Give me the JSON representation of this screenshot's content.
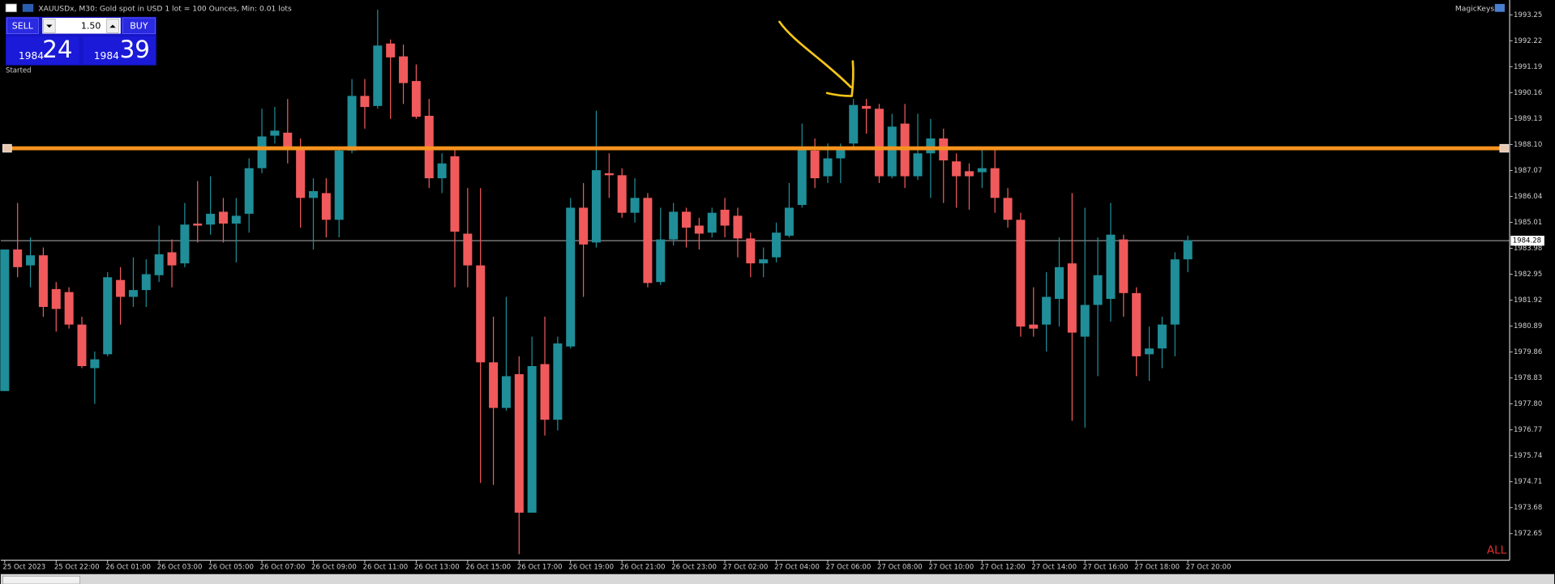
{
  "header": {
    "title": "XAUUSDx, M30:  Gold spot in USD 1 lot = 100 Ounces, Min: 0.01 lots",
    "plugin": "MagicKeys"
  },
  "trade_panel": {
    "sell": "SELL",
    "buy": "BUY",
    "lot": "1.50",
    "sell_big": "1984",
    "sell_pips": "24",
    "buy_big": "1984",
    "buy_pips": "39",
    "status": "Started"
  },
  "corner_label": "ALL",
  "chart_data": {
    "type": "candlestick",
    "up_color": "#1f8e98",
    "down_color": "#f05a5c",
    "hline": 1987.95,
    "hline_color": "#f7931e",
    "current_price": 1984.28,
    "ylim": [
      1971.63,
      1993.76
    ],
    "yticks": [
      1993.25,
      1992.22,
      1991.19,
      1990.16,
      1989.13,
      {
        "value": 1988.1,
        "label": "1988.10"
      },
      1987.07,
      1986.04,
      1985.01,
      1983.98,
      1982.95,
      1981.92,
      1980.89,
      1979.86,
      1978.83,
      {
        "value": 1977.8,
        "label": "1977.80"
      },
      1976.77,
      1975.74,
      1974.71,
      1973.68,
      1972.65
    ],
    "categories": [
      "25 Oct 2023",
      null,
      null,
      null,
      "25 Oct 22:00",
      null,
      null,
      null,
      "26 Oct 01:00",
      null,
      null,
      null,
      "26 Oct 03:00",
      null,
      null,
      null,
      "26 Oct 05:00",
      null,
      null,
      null,
      "26 Oct 07:00",
      null,
      null,
      null,
      "26 Oct 09:00",
      null,
      null,
      null,
      "26 Oct 11:00",
      null,
      null,
      null,
      "26 Oct 13:00",
      null,
      null,
      null,
      "26 Oct 15:00",
      null,
      null,
      null,
      "26 Oct 17:00",
      null,
      null,
      null,
      "26 Oct 19:00",
      null,
      null,
      null,
      "26 Oct 21:00",
      null,
      null,
      null,
      "26 Oct 23:00",
      null,
      null,
      null,
      "27 Oct 02:00",
      null,
      null,
      null,
      "27 Oct 04:00",
      null,
      null,
      null,
      "27 Oct 06:00",
      null,
      null,
      null,
      "27 Oct 08:00",
      null,
      null,
      null,
      "27 Oct 10:00",
      null,
      null,
      null,
      "27 Oct 12:00",
      null,
      null,
      null,
      "27 Oct 14:00",
      null,
      null,
      null,
      "27 Oct 16:00",
      null,
      null,
      null,
      "27 Oct 18:00",
      null,
      null,
      null,
      "27 Oct 20:00"
    ],
    "ohlc": [
      [
        1978.31,
        1983.93,
        1978.31,
        1983.93
      ],
      [
        1983.93,
        1985.78,
        1982.83,
        1983.23
      ],
      [
        1983.3,
        1984.41,
        1982.43,
        1983.7
      ],
      [
        1983.7,
        1984.01,
        1981.26,
        1981.65
      ],
      [
        1982.36,
        1982.64,
        1980.67,
        1981.57
      ],
      [
        1982.24,
        1982.43,
        1980.79,
        1980.95
      ],
      [
        1980.95,
        1981.26,
        1979.22,
        1979.3
      ],
      [
        1979.22,
        1979.88,
        1977.8,
        1979.57
      ],
      [
        1979.77,
        1983.03,
        1979.69,
        1982.83
      ],
      [
        1982.72,
        1983.23,
        1980.95,
        1982.05
      ],
      [
        1982.05,
        1983.62,
        1981.65,
        1982.32
      ],
      [
        1982.32,
        1983.54,
        1981.65,
        1982.95
      ],
      [
        1982.91,
        1984.88,
        1982.64,
        1983.74
      ],
      [
        1983.82,
        1984.33,
        1982.43,
        1983.3
      ],
      [
        1983.38,
        1985.78,
        1983.23,
        1984.92
      ],
      [
        1984.96,
        1986.65,
        1984.21,
        1984.88
      ],
      [
        1984.92,
        1986.84,
        1984.52,
        1985.35
      ],
      [
        1985.43,
        1985.98,
        1984.21,
        1984.96
      ],
      [
        1984.96,
        1985.98,
        1983.42,
        1985.27
      ],
      [
        1985.35,
        1987.55,
        1984.6,
        1987.16
      ],
      [
        1987.16,
        1989.52,
        1986.96,
        1988.42
      ],
      [
        1988.45,
        1989.59,
        1988.14,
        1988.65
      ],
      [
        1988.57,
        1989.91,
        1987.35,
        1987.94
      ],
      [
        1987.94,
        1988.34,
        1984.8,
        1985.98
      ],
      [
        1985.98,
        1986.76,
        1983.93,
        1986.25
      ],
      [
        1986.17,
        1986.76,
        1984.41,
        1985.11
      ],
      [
        1985.11,
        1987.94,
        1984.41,
        1987.86
      ],
      [
        1987.86,
        1990.7,
        1987.75,
        1990.03
      ],
      [
        1990.03,
        1990.7,
        1988.73,
        1989.59
      ],
      [
        1989.63,
        1993.45,
        1989.52,
        1992.03
      ],
      [
        1992.11,
        1992.27,
        1989.12,
        1991.56
      ],
      [
        1991.6,
        1992.07,
        1989.71,
        1990.54
      ],
      [
        1990.62,
        1991.28,
        1989.12,
        1989.2
      ],
      [
        1989.24,
        1989.91,
        1986.37,
        1986.76
      ],
      [
        1986.76,
        1987.75,
        1986.17,
        1987.35
      ],
      [
        1987.63,
        1987.94,
        1982.43,
        1984.64
      ],
      [
        1984.56,
        1986.37,
        1982.43,
        1983.3
      ],
      [
        1983.3,
        1986.37,
        1974.66,
        1979.45
      ],
      [
        1979.45,
        1981.26,
        1974.58,
        1977.64
      ],
      [
        1977.64,
        1982.05,
        1977.53,
        1978.9
      ],
      [
        1978.98,
        1979.69,
        1971.83,
        1973.48
      ],
      [
        1973.48,
        1980.47,
        1973.48,
        1979.3
      ],
      [
        1979.38,
        1981.26,
        1976.54,
        1977.17
      ],
      [
        1977.17,
        1980.47,
        1976.74,
        1980.2
      ],
      [
        1980.08,
        1985.98,
        1980.0,
        1985.59
      ],
      [
        1985.59,
        1986.57,
        1982.05,
        1984.13
      ],
      [
        1984.21,
        1989.44,
        1984.01,
        1987.08
      ],
      [
        1986.96,
        1987.75,
        1985.98,
        1986.88
      ],
      [
        1986.88,
        1987.16,
        1985.19,
        1985.39
      ],
      [
        1985.39,
        1986.76,
        1985.0,
        1985.98
      ],
      [
        1985.98,
        1986.17,
        1982.43,
        1982.6
      ],
      [
        1982.64,
        1985.59,
        1982.52,
        1984.33
      ],
      [
        1984.33,
        1985.78,
        1984.09,
        1985.43
      ],
      [
        1985.43,
        1985.59,
        1984.01,
        1984.8
      ],
      [
        1984.88,
        1985.19,
        1983.93,
        1984.56
      ],
      [
        1984.6,
        1985.59,
        1984.41,
        1985.39
      ],
      [
        1985.51,
        1985.98,
        1984.41,
        1984.88
      ],
      [
        1985.27,
        1985.59,
        1983.62,
        1984.37
      ],
      [
        1984.37,
        1984.6,
        1982.83,
        1983.38
      ],
      [
        1983.38,
        1984.01,
        1982.83,
        1983.54
      ],
      [
        1983.62,
        1985.0,
        1983.42,
        1984.6
      ],
      [
        1984.48,
        1986.57,
        1984.41,
        1985.59
      ],
      [
        1985.7,
        1988.93,
        1985.59,
        1987.94
      ],
      [
        1987.86,
        1988.34,
        1986.37,
        1986.76
      ],
      [
        1986.84,
        1988.14,
        1986.57,
        1987.55
      ],
      [
        1987.55,
        1988.14,
        1986.57,
        1987.94
      ],
      [
        1988.14,
        1989.91,
        1987.94,
        1989.67
      ],
      [
        1989.63,
        1989.91,
        1988.53,
        1989.52
      ],
      [
        1989.52,
        1989.71,
        1986.57,
        1986.84
      ],
      [
        1986.84,
        1989.32,
        1986.76,
        1988.81
      ],
      [
        1988.93,
        1989.71,
        1986.37,
        1986.84
      ],
      [
        1986.84,
        1989.32,
        1986.69,
        1987.75
      ],
      [
        1987.75,
        1989.12,
        1985.98,
        1988.34
      ],
      [
        1988.34,
        1988.73,
        1985.78,
        1987.47
      ],
      [
        1987.43,
        1987.75,
        1985.59,
        1986.84
      ],
      [
        1987.04,
        1987.35,
        1985.51,
        1986.84
      ],
      [
        1987.0,
        1987.94,
        1986.37,
        1987.16
      ],
      [
        1987.16,
        1987.94,
        1985.39,
        1985.98
      ],
      [
        1985.98,
        1986.37,
        1984.8,
        1985.11
      ],
      [
        1985.11,
        1985.39,
        1980.47,
        1980.87
      ],
      [
        1980.95,
        1982.43,
        1980.47,
        1980.79
      ],
      [
        1980.95,
        1983.03,
        1979.88,
        1982.05
      ],
      [
        1981.97,
        1984.41,
        1980.87,
        1983.23
      ],
      [
        1983.38,
        1986.17,
        1977.13,
        1980.63
      ],
      [
        1980.47,
        1985.59,
        1976.86,
        1981.73
      ],
      [
        1981.73,
        1984.41,
        1978.9,
        1982.91
      ],
      [
        1981.97,
        1985.78,
        1981.06,
        1984.52
      ],
      [
        1984.33,
        1984.52,
        1981.26,
        1982.2
      ],
      [
        1982.2,
        1982.43,
        1978.9,
        1979.69
      ],
      [
        1979.77,
        1980.87,
        1978.71,
        1980.0
      ],
      [
        1980.0,
        1981.26,
        1979.22,
        1980.95
      ],
      [
        1980.95,
        1983.82,
        1979.69,
        1983.54
      ],
      [
        1983.54,
        1984.48,
        1983.03,
        1984.29
      ]
    ]
  }
}
